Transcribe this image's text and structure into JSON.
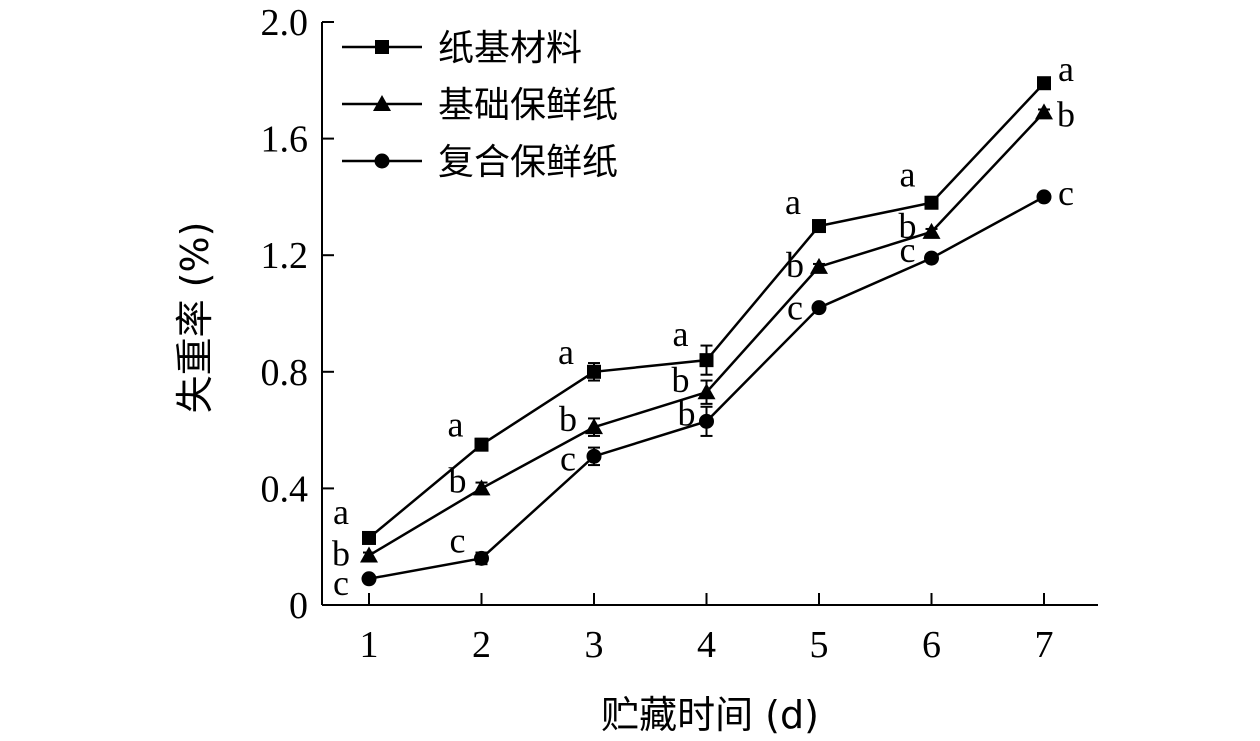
{
  "chart_data": {
    "type": "line",
    "xlabel": "贮藏时间 (d)",
    "ylabel": "失重率 (%)",
    "x": [
      1,
      2,
      3,
      4,
      5,
      6,
      7
    ],
    "x_tick_labels": [
      "1",
      "2",
      "3",
      "4",
      "5",
      "6",
      "7"
    ],
    "ylim": [
      0,
      2.0
    ],
    "y_ticks": [
      0,
      0.4,
      0.8,
      1.2,
      1.6,
      2.0
    ],
    "y_tick_labels": [
      "0",
      "0.4",
      "0.8",
      "1.2",
      "1.6",
      "2.0"
    ],
    "grid": false,
    "legend_position": "top-left",
    "series": [
      {
        "name": "纸基材料",
        "marker": "square",
        "values": [
          0.23,
          0.55,
          0.8,
          0.84,
          1.3,
          1.38,
          1.79
        ],
        "errors": [
          0.01,
          0.02,
          0.03,
          0.05,
          0.01,
          0.01,
          0.01
        ],
        "sig_letters": [
          "a",
          "a",
          "a",
          "a",
          "a",
          "a",
          "a"
        ]
      },
      {
        "name": "基础保鲜纸",
        "marker": "triangle",
        "values": [
          0.17,
          0.4,
          0.61,
          0.73,
          1.16,
          1.28,
          1.69
        ],
        "errors": [
          0.01,
          0.02,
          0.03,
          0.04,
          0.01,
          0.01,
          0.01
        ],
        "sig_letters": [
          "b",
          "b",
          "b",
          "b",
          "b",
          "b",
          "b"
        ]
      },
      {
        "name": "复合保鲜纸",
        "marker": "circle",
        "values": [
          0.09,
          0.16,
          0.51,
          0.63,
          1.02,
          1.19,
          1.4
        ],
        "errors": [
          0.01,
          0.02,
          0.03,
          0.05,
          0.01,
          0.01,
          0.01
        ],
        "sig_letters": [
          "c",
          "c",
          "c",
          "b",
          "c",
          "c",
          "c"
        ]
      }
    ]
  }
}
